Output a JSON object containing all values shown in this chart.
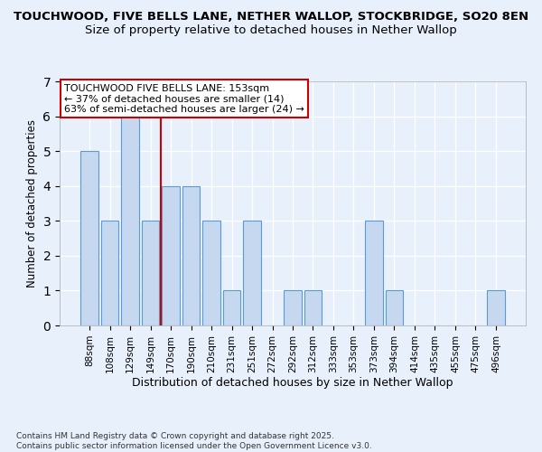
{
  "title1": "TOUCHWOOD, FIVE BELLS LANE, NETHER WALLOP, STOCKBRIDGE, SO20 8EN",
  "title2": "Size of property relative to detached houses in Nether Wallop",
  "xlabel": "Distribution of detached houses by size in Nether Wallop",
  "ylabel": "Number of detached properties",
  "categories": [
    "88sqm",
    "108sqm",
    "129sqm",
    "149sqm",
    "170sqm",
    "190sqm",
    "210sqm",
    "231sqm",
    "251sqm",
    "272sqm",
    "292sqm",
    "312sqm",
    "333sqm",
    "353sqm",
    "373sqm",
    "394sqm",
    "414sqm",
    "435sqm",
    "455sqm",
    "475sqm",
    "496sqm"
  ],
  "values": [
    5,
    3,
    6,
    3,
    4,
    4,
    3,
    1,
    3,
    0,
    1,
    1,
    0,
    0,
    3,
    1,
    0,
    0,
    0,
    0,
    1
  ],
  "bar_color": "#c5d8f0",
  "bar_edge_color": "#5b9bd5",
  "property_line_x": 3.5,
  "annotation_text": "TOUCHWOOD FIVE BELLS LANE: 153sqm\n← 37% of detached houses are smaller (14)\n63% of semi-detached houses are larger (24) →",
  "annotation_box_color": "#ffffff",
  "annotation_box_edge": "#cc0000",
  "vline_color": "#cc0000",
  "ylim": [
    0,
    7
  ],
  "yticks": [
    0,
    1,
    2,
    3,
    4,
    5,
    6,
    7
  ],
  "footer": "Contains HM Land Registry data © Crown copyright and database right 2025.\nContains public sector information licensed under the Open Government Licence v3.0.",
  "bg_color": "#e8f0fb",
  "plot_bg_color": "#e8f0fb",
  "grid_color": "#ffffff",
  "title_fontsize": 9.5,
  "subtitle_fontsize": 9.5
}
